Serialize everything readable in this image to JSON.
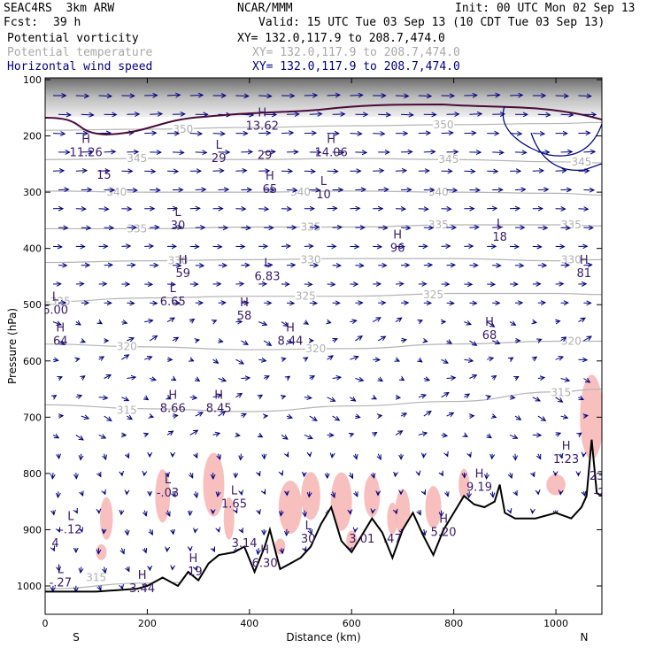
{
  "header": {
    "model": "SEAC4RS  3km ARW",
    "org": "NCAR/MMM",
    "init": "Init: 00 UTC Mon 02 Sep 13",
    "fcst_label": "Fcst:",
    "fcst_value": "39 h",
    "valid": "Valid: 15 UTC Tue 03 Sep 13 (10 CDT Tue 03 Sep 13)",
    "fields": [
      {
        "name": "Potential vorticity",
        "xy": "XY= 132.0,117.9 to 208.7,474.0",
        "color": "#000000"
      },
      {
        "name": "Potential temperature",
        "xy": "XY= 132.0,117.9 to 208.7,474.0",
        "color": "#a8a8a8"
      },
      {
        "name": "Horizontal wind speed",
        "xy": "XY= 132.0,117.9 to 208.7,474.0",
        "color": "#000080"
      }
    ]
  },
  "chart_data": {
    "type": "cross-section",
    "xlabel": "Distance (km)",
    "ylabel": "Pressure (hPa)",
    "xlim": [
      0,
      1090
    ],
    "ylim": [
      1050,
      100
    ],
    "xticks": [
      "0",
      "200",
      "400",
      "600",
      "800",
      "1000"
    ],
    "yticks": [
      "100",
      "200",
      "300",
      "400",
      "500",
      "600",
      "700",
      "800",
      "900",
      "1000"
    ],
    "end_labels": {
      "left": "S",
      "right": "N"
    },
    "theta_contours": [
      {
        "label": "315",
        "values_hpa": [
          [
            0,
            1005
          ],
          [
            200,
            995
          ],
          [
            400,
            990
          ],
          [
            600,
            985
          ],
          [
            800,
            990
          ],
          [
            1000,
            975
          ],
          [
            1090,
            965
          ]
        ]
      },
      {
        "label": "315",
        "values_hpa": [
          [
            0,
            678
          ],
          [
            200,
            685
          ],
          [
            400,
            690
          ],
          [
            600,
            680
          ],
          [
            800,
            672
          ],
          [
            1000,
            655
          ],
          [
            1090,
            650
          ]
        ]
      },
      {
        "label": "320",
        "values_hpa": [
          [
            0,
            570
          ],
          [
            200,
            575
          ],
          [
            400,
            580
          ],
          [
            600,
            578
          ],
          [
            800,
            570
          ],
          [
            1000,
            565
          ],
          [
            1090,
            565
          ]
        ]
      },
      {
        "label": "325",
        "values_hpa": [
          [
            0,
            495
          ],
          [
            200,
            488
          ],
          [
            400,
            485
          ],
          [
            600,
            485
          ],
          [
            800,
            480
          ],
          [
            1000,
            480
          ],
          [
            1090,
            482
          ]
        ]
      },
      {
        "label": "330",
        "values_hpa": [
          [
            0,
            425
          ],
          [
            200,
            422
          ],
          [
            400,
            420
          ],
          [
            600,
            418
          ],
          [
            800,
            418
          ],
          [
            1000,
            422
          ],
          [
            1090,
            420
          ]
        ]
      },
      {
        "label": "335",
        "values_hpa": [
          [
            0,
            365
          ],
          [
            200,
            365
          ],
          [
            400,
            362
          ],
          [
            600,
            362
          ],
          [
            800,
            358
          ],
          [
            1000,
            358
          ],
          [
            1090,
            360
          ]
        ]
      },
      {
        "label": "340",
        "values_hpa": [
          [
            0,
            298
          ],
          [
            200,
            300
          ],
          [
            400,
            300
          ],
          [
            600,
            298
          ],
          [
            800,
            300
          ],
          [
            1000,
            302
          ],
          [
            1090,
            305
          ]
        ]
      },
      {
        "label": "345",
        "values_hpa": [
          [
            0,
            242
          ],
          [
            200,
            240
          ],
          [
            400,
            242
          ],
          [
            600,
            240
          ],
          [
            800,
            242
          ],
          [
            1000,
            246
          ],
          [
            1090,
            248
          ]
        ]
      },
      {
        "label": "350",
        "values_hpa": [
          [
            0,
            190
          ],
          [
            200,
            188
          ],
          [
            400,
            185
          ],
          [
            600,
            182
          ],
          [
            800,
            180
          ],
          [
            1000,
            178
          ],
          [
            1090,
            176
          ]
        ]
      }
    ],
    "theta_label_positions": [
      {
        "label": "315",
        "x": 100,
        "p": 985
      },
      {
        "label": "315",
        "x": 160,
        "p": 688
      },
      {
        "label": "315",
        "x": 1010,
        "p": 656
      },
      {
        "label": "320",
        "x": 160,
        "p": 574
      },
      {
        "label": "320",
        "x": 530,
        "p": 578
      },
      {
        "label": "320",
        "x": 1030,
        "p": 565
      },
      {
        "label": "325",
        "x": 30,
        "p": 494
      },
      {
        "label": "325",
        "x": 510,
        "p": 485
      },
      {
        "label": "325",
        "x": 760,
        "p": 482
      },
      {
        "label": "330",
        "x": 260,
        "p": 422
      },
      {
        "label": "330",
        "x": 520,
        "p": 420
      },
      {
        "label": "330",
        "x": 1030,
        "p": 420
      },
      {
        "label": "335",
        "x": 180,
        "p": 365
      },
      {
        "label": "335",
        "x": 520,
        "p": 362
      },
      {
        "label": "335",
        "x": 770,
        "p": 358
      },
      {
        "label": "335",
        "x": 1030,
        "p": 358
      },
      {
        "label": "340",
        "x": 140,
        "p": 300
      },
      {
        "label": "340",
        "x": 500,
        "p": 300
      },
      {
        "label": "340",
        "x": 770,
        "p": 300
      },
      {
        "label": "345",
        "x": 180,
        "p": 240
      },
      {
        "label": "345",
        "x": 790,
        "p": 242
      },
      {
        "label": "345",
        "x": 1050,
        "p": 246
      },
      {
        "label": "350",
        "x": 270,
        "p": 188
      },
      {
        "label": "350",
        "x": 780,
        "p": 180
      }
    ],
    "extrema": [
      {
        "t": "H",
        "x": 80,
        "p": 225,
        "v": "11.26"
      },
      {
        "t": "",
        "x": 115,
        "p": 265,
        "v": "15"
      },
      {
        "t": "L",
        "x": 340,
        "p": 235,
        "v": "29"
      },
      {
        "t": "H",
        "x": 425,
        "p": 178,
        "v": "13.62"
      },
      {
        "t": "",
        "x": 430,
        "p": 230,
        "v": "29"
      },
      {
        "t": "H",
        "x": 560,
        "p": 225,
        "v": "14.06"
      },
      {
        "t": "H",
        "x": 440,
        "p": 290,
        "v": "65"
      },
      {
        "t": "L",
        "x": 545,
        "p": 300,
        "v": "10"
      },
      {
        "t": "L",
        "x": 260,
        "p": 355,
        "v": "30"
      },
      {
        "t": "H",
        "x": 690,
        "p": 395,
        "v": "96"
      },
      {
        "t": "L",
        "x": 890,
        "p": 375,
        "v": "18"
      },
      {
        "t": "H",
        "x": 270,
        "p": 440,
        "v": "59"
      },
      {
        "t": "L",
        "x": 435,
        "p": 445,
        "v": "6.83"
      },
      {
        "t": "H",
        "x": 1055,
        "p": 440,
        "v": "81"
      },
      {
        "t": "L",
        "x": 20,
        "p": 505,
        "v": "6.00"
      },
      {
        "t": "L",
        "x": 250,
        "p": 490,
        "v": "6.65"
      },
      {
        "t": "H",
        "x": 390,
        "p": 515,
        "v": "58"
      },
      {
        "t": "H",
        "x": 30,
        "p": 560,
        "v": "64"
      },
      {
        "t": "H",
        "x": 480,
        "p": 560,
        "v": "8.44"
      },
      {
        "t": "H",
        "x": 870,
        "p": 550,
        "v": "68"
      },
      {
        "t": "H",
        "x": 250,
        "p": 680,
        "v": "8.66"
      },
      {
        "t": "H",
        "x": 340,
        "p": 680,
        "v": "8.45"
      },
      {
        "t": "H",
        "x": 1020,
        "p": 770,
        "v": "1:23"
      },
      {
        "t": "H",
        "x": 850,
        "p": 820,
        "v": "9.19"
      },
      {
        "t": "L",
        "x": 240,
        "p": 830,
        "v": "-.03"
      },
      {
        "t": "L",
        "x": 370,
        "p": 850,
        "v": "1.65"
      },
      {
        "t": "",
        "x": 1080,
        "p": 800,
        "v": "23"
      },
      {
        "t": "",
        "x": 1085,
        "p": 830,
        "v": "-2"
      },
      {
        "t": "L",
        "x": 50,
        "p": 895,
        "v": "-.12"
      },
      {
        "t": "",
        "x": 20,
        "p": 920,
        "v": "4"
      },
      {
        "t": "",
        "x": 390,
        "p": 920,
        "v": "3.14"
      },
      {
        "t": "L",
        "x": 515,
        "p": 912,
        "v": "30"
      },
      {
        "t": "",
        "x": 620,
        "p": 912,
        "v": "3.01"
      },
      {
        "t": "",
        "x": 680,
        "p": 912,
        "v": ".47"
      },
      {
        "t": "H",
        "x": 780,
        "p": 900,
        "v": "5.20"
      },
      {
        "t": "H",
        "x": 290,
        "p": 970,
        "v": ".19"
      },
      {
        "t": "H",
        "x": 430,
        "p": 955,
        "v": "6.30"
      },
      {
        "t": "L",
        "x": 30,
        "p": 990,
        "v": "-.27"
      },
      {
        "t": "H",
        "x": 190,
        "p": 1000,
        "v": "3.44"
      }
    ],
    "terrain_hpa": [
      [
        0,
        1010
      ],
      [
        100,
        1010
      ],
      [
        180,
        1005
      ],
      [
        200,
        1000
      ],
      [
        230,
        985
      ],
      [
        260,
        1000
      ],
      [
        280,
        975
      ],
      [
        300,
        990
      ],
      [
        320,
        960
      ],
      [
        340,
        945
      ],
      [
        370,
        940
      ],
      [
        390,
        930
      ],
      [
        410,
        975
      ],
      [
        430,
        930
      ],
      [
        440,
        900
      ],
      [
        460,
        970
      ],
      [
        480,
        960
      ],
      [
        500,
        950
      ],
      [
        520,
        930
      ],
      [
        540,
        890
      ],
      [
        560,
        860
      ],
      [
        580,
        920
      ],
      [
        600,
        940
      ],
      [
        620,
        910
      ],
      [
        640,
        880
      ],
      [
        660,
        905
      ],
      [
        680,
        950
      ],
      [
        700,
        900
      ],
      [
        720,
        870
      ],
      [
        740,
        910
      ],
      [
        760,
        945
      ],
      [
        780,
        900
      ],
      [
        800,
        870
      ],
      [
        820,
        840
      ],
      [
        840,
        855
      ],
      [
        860,
        860
      ],
      [
        880,
        850
      ],
      [
        890,
        820
      ],
      [
        900,
        870
      ],
      [
        920,
        880
      ],
      [
        960,
        880
      ],
      [
        1000,
        870
      ],
      [
        1030,
        880
      ],
      [
        1050,
        860
      ],
      [
        1060,
        840
      ],
      [
        1070,
        740
      ],
      [
        1080,
        835
      ],
      [
        1090,
        840
      ]
    ]
  }
}
